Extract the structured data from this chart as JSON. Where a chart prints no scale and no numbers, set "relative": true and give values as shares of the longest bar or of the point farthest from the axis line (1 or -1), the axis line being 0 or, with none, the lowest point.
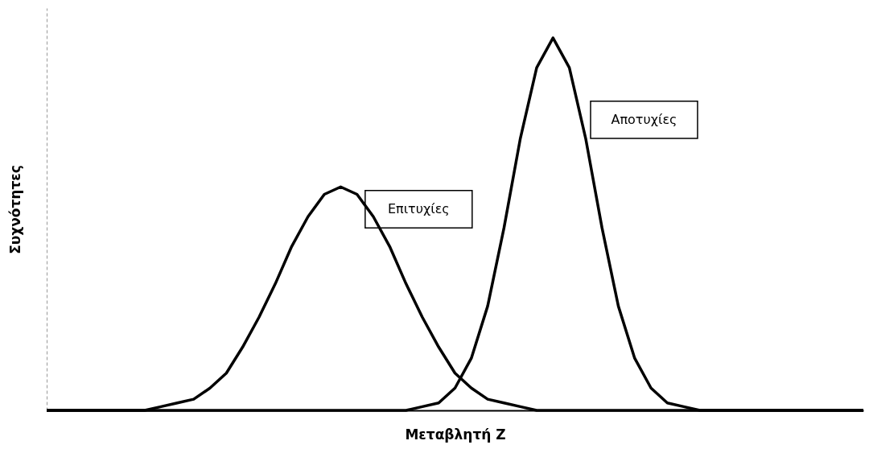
{
  "chart_data": {
    "type": "line",
    "relative": true,
    "xlabel": "Μεταβλητή Z",
    "ylabel": "Συχνότητες",
    "tick_labels": false,
    "grid": false,
    "marker": "none",
    "line_style": "solid",
    "categories": [
      null,
      null,
      null,
      null,
      null,
      null,
      null,
      null,
      null,
      null,
      null,
      null,
      null,
      null,
      null,
      null,
      null,
      null,
      null,
      null,
      null,
      null,
      null,
      null,
      null,
      null,
      null,
      null,
      null,
      null,
      null,
      null,
      null,
      null,
      null,
      null,
      null,
      null,
      null,
      null,
      null,
      null,
      null,
      null,
      null,
      null,
      null,
      null,
      null,
      null,
      null
    ],
    "series": [
      {
        "name": "Επιτυχίες",
        "color": "#000000",
        "values": [
          0,
          0,
          0,
          0,
          0,
          0,
          0,
          0.01,
          0.02,
          0.03,
          0.06,
          0.1,
          0.17,
          0.25,
          0.34,
          0.44,
          0.52,
          0.58,
          0.6,
          0.58,
          0.52,
          0.44,
          0.34,
          0.25,
          0.17,
          0.1,
          0.06,
          0.03,
          0.02,
          0.01,
          0,
          0,
          0,
          0,
          0,
          0,
          0,
          0,
          0,
          0,
          0,
          0,
          0,
          0,
          0,
          0,
          0,
          0,
          0,
          0,
          0
        ]
      },
      {
        "name": "Αποτυχίες",
        "color": "#000000",
        "values": [
          0,
          0,
          0,
          0,
          0,
          0,
          0,
          0,
          0,
          0,
          0,
          0,
          0,
          0,
          0,
          0,
          0,
          0,
          0,
          0,
          0,
          0,
          0,
          0.01,
          0.02,
          0.06,
          0.14,
          0.28,
          0.49,
          0.73,
          0.92,
          1,
          0.92,
          0.73,
          0.49,
          0.28,
          0.14,
          0.06,
          0.02,
          0.01,
          0,
          0,
          0,
          0,
          0,
          0,
          0,
          0,
          0,
          0,
          0
        ]
      }
    ]
  }
}
